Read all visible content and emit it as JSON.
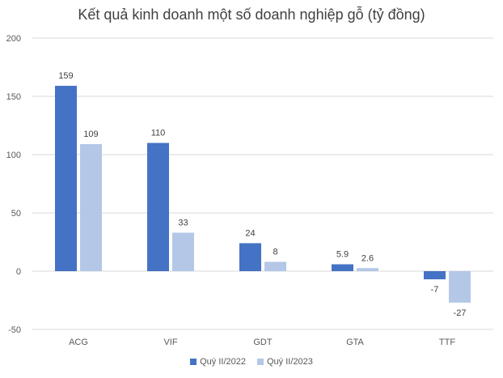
{
  "chart_data": {
    "type": "bar",
    "title": "Kết quả kinh doanh một số doanh nghiệp gỗ (tỷ đồng)",
    "categories": [
      "ACG",
      "VIF",
      "GDT",
      "GTA",
      "TTF"
    ],
    "series": [
      {
        "name": "Quý II/2022",
        "color": "#4472C4",
        "values": [
          159,
          110,
          24,
          5.9,
          -7
        ]
      },
      {
        "name": "Quý II/2023",
        "color": "#B4C7E7",
        "values": [
          109,
          33,
          8,
          2.6,
          -27
        ]
      }
    ],
    "ylim": [
      -50,
      200
    ],
    "yticks": [
      -50,
      0,
      50,
      100,
      150,
      200
    ],
    "grid": true,
    "legend": "bottom"
  }
}
